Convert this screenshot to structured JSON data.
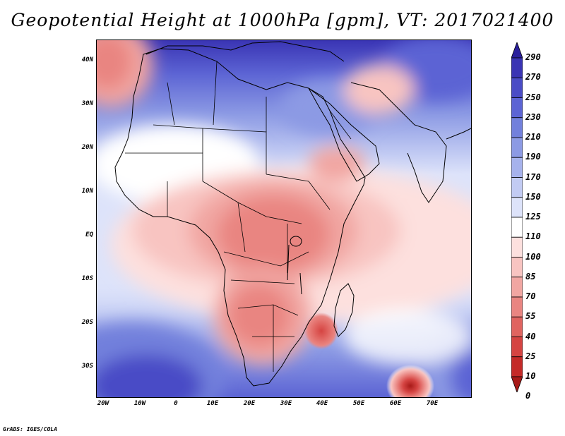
{
  "title": "Geopotential Height at 1000hPa [gpm], VT: 2017021400",
  "credit": "GrADS: IGES/COLA",
  "axes": {
    "lat_labels": [
      "40N",
      "30N",
      "20N",
      "10N",
      "EQ",
      "10S",
      "20S",
      "30S"
    ],
    "lon_labels": [
      "20W",
      "10W",
      "0",
      "10E",
      "20E",
      "30E",
      "40E",
      "50E",
      "60E",
      "70E"
    ]
  },
  "colorbar": {
    "levels": [
      "290",
      "270",
      "250",
      "230",
      "210",
      "190",
      "170",
      "150",
      "125",
      "110",
      "100",
      "85",
      "70",
      "55",
      "40",
      "25",
      "10",
      "0"
    ],
    "colors": [
      "#2a1f9c",
      "#3a34b4",
      "#4a4cc6",
      "#5c64d4",
      "#7280dc",
      "#8c9ae4",
      "#a6b2ec",
      "#c2cbf3",
      "#dde3fa",
      "#ffffff",
      "#fde0de",
      "#f8c4c1",
      "#f1a6a2",
      "#e98581",
      "#e06460",
      "#d54442",
      "#c42a28",
      "#a81a18"
    ]
  },
  "map": {
    "variable": "Geopotential Height",
    "level": "1000hPa",
    "units": "gpm",
    "valid_time": "2017021400",
    "lat_range": [
      -37,
      45
    ],
    "lon_range": [
      -20,
      80
    ]
  }
}
